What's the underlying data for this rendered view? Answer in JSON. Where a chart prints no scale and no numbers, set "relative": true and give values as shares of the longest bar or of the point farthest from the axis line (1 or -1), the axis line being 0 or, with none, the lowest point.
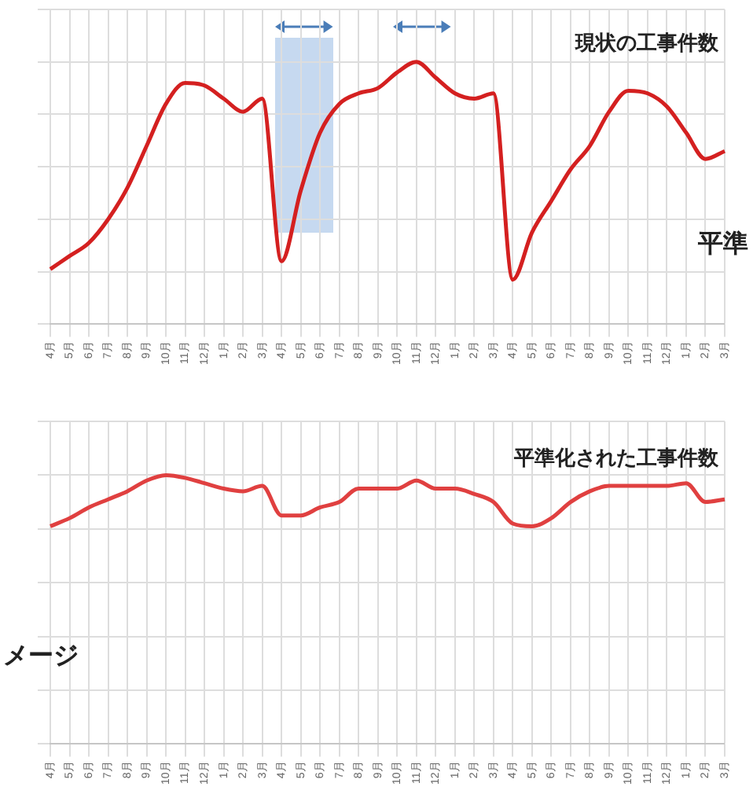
{
  "chart_data": [
    {
      "type": "line",
      "relative": true,
      "grid": true,
      "legend": false,
      "marker": "none",
      "line_style": "solid",
      "categories": [
        "4月",
        "5月",
        "6月",
        "7月",
        "8月",
        "9月",
        "10月",
        "11月",
        "12月",
        "1月",
        "2月",
        "3月",
        "4月",
        "5月",
        "6月",
        "7月",
        "8月",
        "9月",
        "10月",
        "11月",
        "12月",
        "1月",
        "2月",
        "3月",
        "4月",
        "5月",
        "6月",
        "7月",
        "8月",
        "9月",
        "10月",
        "11月",
        "12月",
        "1月",
        "2月",
        "3月"
      ],
      "series": [
        {
          "name": "現状の工事件数",
          "color": "#d42020",
          "values": [
            0.21,
            0.26,
            0.31,
            0.4,
            0.52,
            0.68,
            0.84,
            0.92,
            0.91,
            0.86,
            0.81,
            0.86,
            0.24,
            0.51,
            0.73,
            0.84,
            0.88,
            0.9,
            0.96,
            1,
            0.94,
            0.88,
            0.86,
            0.88,
            0.17,
            0.35,
            0.47,
            0.59,
            0.68,
            0.81,
            0.89,
            0.88,
            0.83,
            0.73,
            0.63,
            0.66
          ]
        }
      ],
      "annotations": [
        "平準"
      ]
    },
    {
      "type": "line",
      "relative": true,
      "grid": true,
      "legend": false,
      "marker": "none",
      "line_style": "solid",
      "categories": [
        "4月",
        "5月",
        "6月",
        "7月",
        "8月",
        "9月",
        "10月",
        "11月",
        "12月",
        "1月",
        "2月",
        "3月",
        "4月",
        "5月",
        "6月",
        "7月",
        "8月",
        "9月",
        "10月",
        "11月",
        "12月",
        "1月",
        "2月",
        "3月",
        "4月",
        "5月",
        "6月",
        "7月",
        "8月",
        "9月",
        "10月",
        "11月",
        "12月",
        "1月",
        "2月",
        "3月"
      ],
      "series": [
        {
          "name": "平準化された工事件数",
          "color": "#e04040",
          "values": [
            0.81,
            0.84,
            0.88,
            0.91,
            0.94,
            0.98,
            1,
            0.99,
            0.97,
            0.95,
            0.94,
            0.96,
            0.85,
            0.85,
            0.88,
            0.9,
            0.95,
            0.95,
            0.95,
            0.98,
            0.95,
            0.95,
            0.93,
            0.9,
            0.82,
            0.81,
            0.84,
            0.9,
            0.94,
            0.96,
            0.96,
            0.96,
            0.96,
            0.97,
            0.9,
            0.91
          ]
        }
      ],
      "annotations": [
        "メージ"
      ]
    }
  ]
}
